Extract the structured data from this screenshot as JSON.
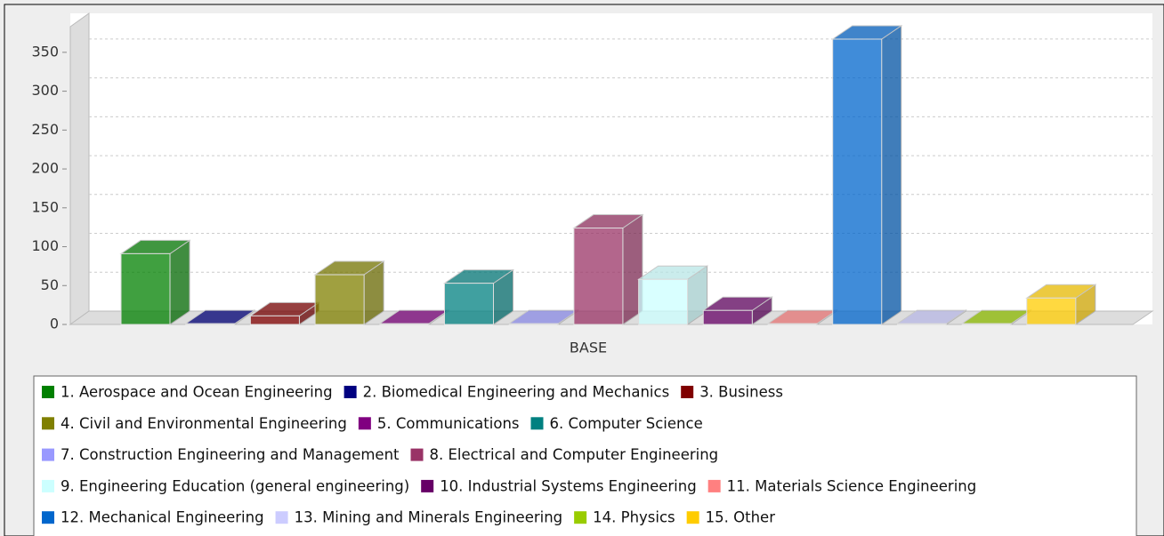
{
  "chart_data": {
    "type": "bar3d",
    "categories": [
      "BASE"
    ],
    "ylim": [
      0,
      383
    ],
    "yticks": [
      0,
      50,
      100,
      150,
      200,
      250,
      300,
      350
    ],
    "grid": true,
    "series": [
      {
        "name": "1. Aerospace and Ocean Engineering",
        "color": "#008000",
        "values": [
          91
        ]
      },
      {
        "name": "2. Biomedical Engineering and Mechanics",
        "color": "#000080",
        "values": [
          1
        ]
      },
      {
        "name": "3. Business",
        "color": "#800000",
        "values": [
          11
        ]
      },
      {
        "name": "4. Civil and Environmental Engineering",
        "color": "#808000",
        "values": [
          64
        ]
      },
      {
        "name": "5. Communications",
        "color": "#800080",
        "values": [
          1
        ]
      },
      {
        "name": "6. Computer Science",
        "color": "#008080",
        "values": [
          53
        ]
      },
      {
        "name": "7. Construction Engineering and Management",
        "color": "#9999ff",
        "values": [
          1
        ]
      },
      {
        "name": "8. Electrical and Computer Engineering",
        "color": "#993366",
        "values": [
          124
        ]
      },
      {
        "name": "9. Engineering Education (general engineering)",
        "color": "#ccffff",
        "values": [
          58
        ]
      },
      {
        "name": "10. Industrial Systems Engineering",
        "color": "#660066",
        "values": [
          18
        ]
      },
      {
        "name": "11. Materials Science Engineering",
        "color": "#ff8080",
        "values": [
          1
        ]
      },
      {
        "name": "12. Mechanical Engineering",
        "color": "#0066cc",
        "values": [
          367
        ]
      },
      {
        "name": "13. Mining and Minerals Engineering",
        "color": "#ccccff",
        "values": [
          1
        ]
      },
      {
        "name": "14. Physics",
        "color": "#99cc00",
        "values": [
          1
        ]
      },
      {
        "name": "15. Other",
        "color": "#ffcc00",
        "values": [
          34
        ]
      }
    ]
  }
}
